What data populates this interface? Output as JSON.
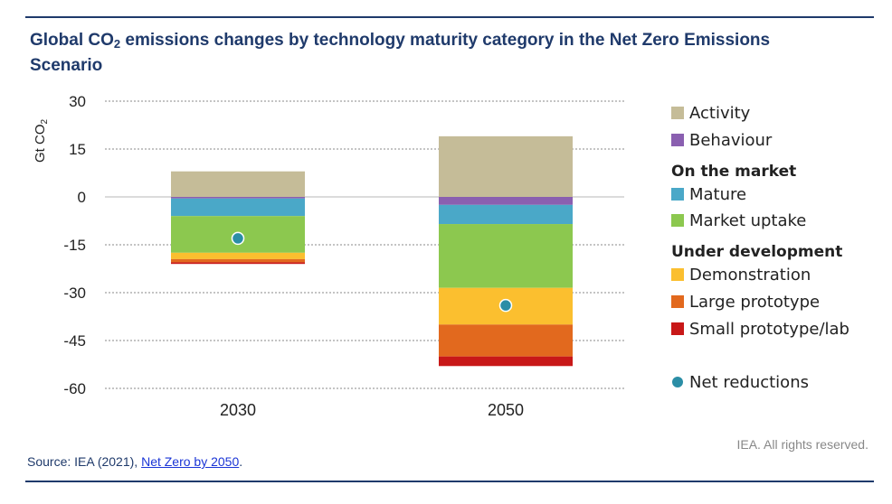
{
  "header": {
    "title_pre": "Global CO",
    "title_sub": "2",
    "title_post": " emissions changes by technology maturity category in the Net Zero Emissions Scenario"
  },
  "footer": {
    "source_prefix": "Source: IEA (2021), ",
    "source_link": "Net Zero by 2050",
    "source_suffix": ".",
    "rights": "IEA. All rights reserved."
  },
  "chart_data": {
    "type": "bar",
    "stacked": true,
    "ylabel_main": "Gt CO",
    "ylabel_sub": "2",
    "ylim": [
      -60,
      30
    ],
    "yticks": [
      30,
      15,
      0,
      -15,
      -30,
      -45,
      -60
    ],
    "grid": true,
    "legend_position": "right",
    "categories": [
      "2030",
      "2050"
    ],
    "series": [
      {
        "name": "Activity",
        "color": "#c5bc98",
        "values": [
          8,
          19
        ]
      },
      {
        "name": "Behaviour",
        "color": "#8a5fb0",
        "values": [
          -0.5,
          -2.5
        ]
      },
      {
        "name": "Mature",
        "color": "#4aa8c8",
        "values": [
          -5.5,
          -6
        ]
      },
      {
        "name": "Market uptake",
        "color": "#8cc84f",
        "values": [
          -11.5,
          -20
        ]
      },
      {
        "name": "Demonstration",
        "color": "#fbbf2f",
        "values": [
          -2,
          -11.5
        ]
      },
      {
        "name": "Large prototype",
        "color": "#e2691e",
        "values": [
          -1,
          -10
        ]
      },
      {
        "name": "Small prototype/lab",
        "color": "#c81818",
        "values": [
          -0.5,
          -3
        ]
      }
    ],
    "net_reductions": {
      "name": "Net reductions",
      "color": "#2b8ea6",
      "values": [
        -13,
        -34
      ]
    },
    "legend": [
      {
        "kind": "item",
        "label": "Activity",
        "color": "#c5bc98"
      },
      {
        "kind": "item",
        "label": "Behaviour",
        "color": "#8a5fb0"
      },
      {
        "kind": "heading",
        "label": "On the market"
      },
      {
        "kind": "item",
        "label": "Mature",
        "color": "#4aa8c8"
      },
      {
        "kind": "item",
        "label": "Market uptake",
        "color": "#8cc84f"
      },
      {
        "kind": "heading",
        "label": "Under development"
      },
      {
        "kind": "item",
        "label": "Demonstration",
        "color": "#fbbf2f"
      },
      {
        "kind": "item",
        "label": "Large prototype",
        "color": "#e2691e"
      },
      {
        "kind": "item",
        "label": "Small prototype/lab",
        "color": "#c81818"
      },
      {
        "kind": "dot",
        "label": "Net reductions",
        "color": "#2b8ea6"
      }
    ]
  }
}
